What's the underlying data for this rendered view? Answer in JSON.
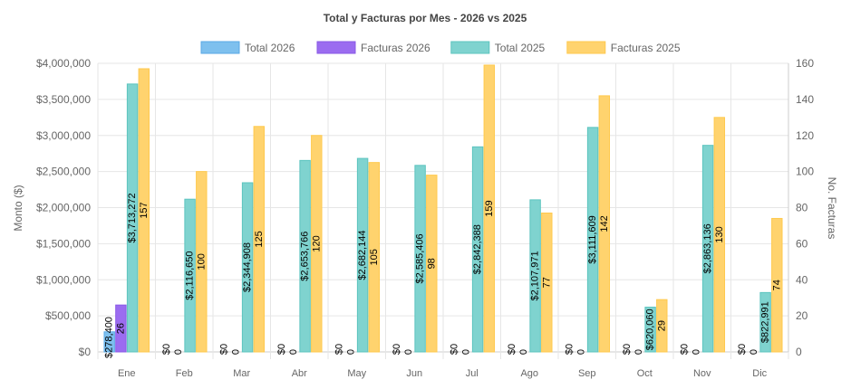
{
  "chart_data": {
    "type": "bar",
    "title": "Total y Facturas por Mes - 2026 vs 2025",
    "categories": [
      "Ene",
      "Feb",
      "Mar",
      "Abr",
      "May",
      "Jun",
      "Jul",
      "Ago",
      "Sep",
      "Oct",
      "Nov",
      "Dic"
    ],
    "series": [
      {
        "name": "Total 2026",
        "axis": "left",
        "color": "#7ec0ee",
        "border": "#5aa9e6",
        "values": [
          278400,
          0,
          0,
          0,
          0,
          0,
          0,
          0,
          0,
          0,
          0,
          0
        ],
        "labels": [
          "$278,400",
          "$0",
          "$0",
          "$0",
          "$0",
          "$0",
          "$0",
          "$0",
          "$0",
          "$0",
          "$0",
          "$0"
        ]
      },
      {
        "name": "Facturas 2026",
        "axis": "right",
        "color": "#9b6cf0",
        "border": "#8a5ae6",
        "values": [
          26,
          0,
          0,
          0,
          0,
          0,
          0,
          0,
          0,
          0,
          0,
          0
        ],
        "labels": [
          "26",
          "0",
          "0",
          "0",
          "0",
          "0",
          "0",
          "0",
          "0",
          "0",
          "0",
          "0"
        ]
      },
      {
        "name": "Total 2025",
        "axis": "left",
        "color": "#7fd3cf",
        "border": "#5cc4bf",
        "values": [
          3713272,
          2116650,
          2344908,
          2653766,
          2682144,
          2585406,
          2842388,
          2107971,
          3111609,
          620060,
          2863136,
          822991
        ],
        "labels": [
          "$3,713,272",
          "$2,116,650",
          "$2,344,908",
          "$2,653,766",
          "$2,682,144",
          "$2,585,406",
          "$2,842,388",
          "$2,107,971",
          "$3,111,609",
          "$620,060",
          "$2,863,136",
          "$822,991"
        ]
      },
      {
        "name": "Facturas 2025",
        "axis": "right",
        "color": "#ffd36e",
        "border": "#ffc94d",
        "values": [
          157,
          100,
          125,
          120,
          105,
          98,
          159,
          77,
          142,
          29,
          130,
          74
        ],
        "labels": [
          "157",
          "100",
          "125",
          "120",
          "105",
          "98",
          "159",
          "77",
          "142",
          "29",
          "130",
          "74"
        ]
      }
    ],
    "y_left": {
      "label": "Monto ($)",
      "range": [
        0,
        4000000
      ],
      "ticks": [
        "$0",
        "$500,000",
        "$1,000,000",
        "$1,500,000",
        "$2,000,000",
        "$2,500,000",
        "$3,000,000",
        "$3,500,000",
        "$4,000,000"
      ]
    },
    "y_right": {
      "label": "No. Facturas",
      "range": [
        0,
        160
      ],
      "ticks": [
        "0",
        "20",
        "40",
        "60",
        "80",
        "100",
        "120",
        "140",
        "160"
      ]
    },
    "grid": true,
    "legend": "top"
  }
}
